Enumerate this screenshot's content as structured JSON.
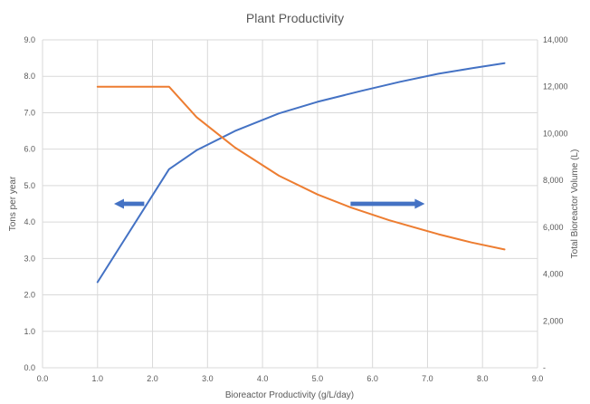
{
  "chart_data": {
    "type": "line",
    "title": "Plant Productivity",
    "xlabel": "Bioreactor Productivity (g/L/day)",
    "ylabel": "Tons per year",
    "y2label": "Total Bioreactor Volume (L)",
    "xlim": [
      0,
      9
    ],
    "ylim": [
      0,
      9
    ],
    "y2lim": [
      0,
      14000
    ],
    "x_ticks": [
      "0.0",
      "1.0",
      "2.0",
      "3.0",
      "4.0",
      "5.0",
      "6.0",
      "7.0",
      "8.0",
      "9.0"
    ],
    "y_ticks": [
      "0.0",
      "1.0",
      "2.0",
      "3.0",
      "4.0",
      "5.0",
      "6.0",
      "7.0",
      "8.0",
      "9.0"
    ],
    "y2_ticks": [
      "-",
      "2,000",
      "4,000",
      "6,000",
      "8,000",
      "10,000",
      "12,000",
      "14,000"
    ],
    "grid": true,
    "series": [
      {
        "axis": "left",
        "color": "#4472c4",
        "x": [
          1.0,
          2.3,
          2.8,
          3.5,
          4.3,
          5.0,
          5.8,
          6.5,
          7.2,
          7.8,
          8.4
        ],
        "y": [
          2.35,
          5.45,
          5.97,
          6.5,
          6.98,
          7.3,
          7.6,
          7.85,
          8.07,
          8.22,
          8.36
        ]
      },
      {
        "axis": "right",
        "color": "#ed7d31",
        "x": [
          1.0,
          2.3,
          2.8,
          3.5,
          4.3,
          5.0,
          5.6,
          6.3,
          7.2,
          7.8,
          8.4
        ],
        "y": [
          12000,
          12000,
          10700,
          9400,
          8200,
          7400,
          6850,
          6300,
          5700,
          5350,
          5050
        ]
      }
    ],
    "annotations": [
      {
        "type": "arrow",
        "direction": "left",
        "color": "#4472c4",
        "x_from": 1.85,
        "x_to": 1.3,
        "y": 4.5
      },
      {
        "type": "arrow",
        "direction": "right",
        "color": "#4472c4",
        "x_from": 5.6,
        "x_to": 6.95,
        "y": 4.5
      }
    ]
  }
}
